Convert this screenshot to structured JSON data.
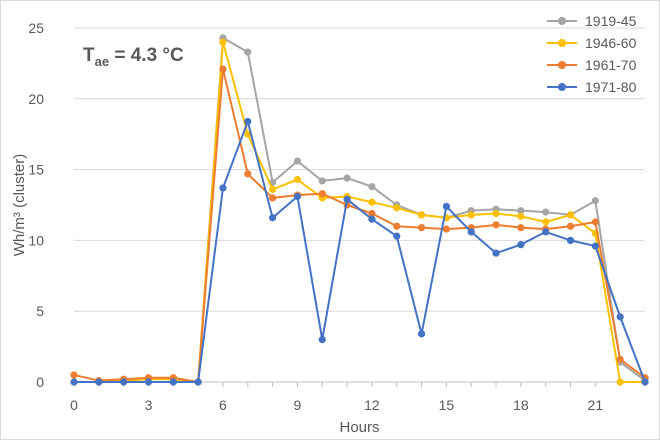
{
  "chart_data": {
    "type": "line",
    "xlabel": "Hours",
    "ylabel": "Wh/m³ (cluster)",
    "annotation": {
      "main": "T",
      "subscript": "ae",
      "rest": " = 4.3 °C"
    },
    "xlim": [
      0,
      23
    ],
    "ylim": [
      0,
      25
    ],
    "xticks": [
      0,
      3,
      6,
      9,
      12,
      15,
      18,
      21
    ],
    "yticks": [
      0,
      5,
      10,
      15,
      20,
      25
    ],
    "grid": "horizontal",
    "legend_position": "top-right",
    "x": [
      0,
      1,
      2,
      3,
      4,
      5,
      6,
      7,
      8,
      9,
      10,
      11,
      12,
      13,
      14,
      15,
      16,
      17,
      18,
      19,
      20,
      21,
      22,
      23
    ],
    "series": [
      {
        "name": "1919-45",
        "color": "#a5a5a5",
        "values": [
          0,
          0,
          0.1,
          0.2,
          0.2,
          0,
          24.3,
          23.3,
          14.1,
          15.6,
          14.2,
          14.4,
          13.8,
          12.5,
          11.8,
          11.6,
          12.1,
          12.2,
          12.1,
          12.0,
          11.8,
          12.8,
          1.4,
          0.1
        ]
      },
      {
        "name": "1946-60",
        "color": "#ffc000",
        "values": [
          0,
          0,
          0.1,
          0.2,
          0.2,
          0,
          24.0,
          17.5,
          13.6,
          14.3,
          13.0,
          13.1,
          12.7,
          12.3,
          11.8,
          11.6,
          11.8,
          11.9,
          11.7,
          11.3,
          11.8,
          10.5,
          0,
          0
        ]
      },
      {
        "name": "1961-70",
        "color": "#ed7d31",
        "values": [
          0.5,
          0.1,
          0.2,
          0.3,
          0.3,
          0,
          22.1,
          14.7,
          13.0,
          13.2,
          13.3,
          12.5,
          11.9,
          11.0,
          10.9,
          10.8,
          10.9,
          11.1,
          10.9,
          10.8,
          11.0,
          11.3,
          1.6,
          0.3
        ]
      },
      {
        "name": "1971-80",
        "color": "#4472c4",
        "values": [
          0,
          0,
          0,
          0,
          0,
          0,
          13.7,
          18.4,
          11.6,
          13.1,
          3.0,
          12.9,
          11.5,
          10.3,
          3.4,
          12.4,
          10.6,
          9.1,
          9.7,
          10.6,
          10.0,
          9.6,
          4.6,
          0
        ]
      }
    ]
  }
}
